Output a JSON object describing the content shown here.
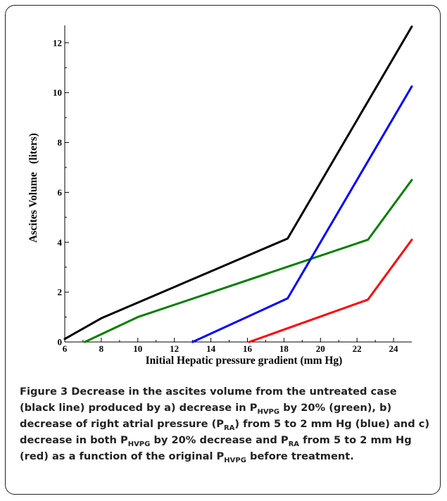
{
  "chart_data": {
    "type": "line",
    "xlabel": "Initial Hepatic pressure gradient (mm Hg)",
    "ylabel": "Ascites Volume   (liters)",
    "xlim": [
      6,
      25
    ],
    "ylim": [
      0,
      12.7
    ],
    "xticks": [
      6,
      8,
      10,
      12,
      14,
      16,
      18,
      20,
      22,
      24
    ],
    "yticks": [
      0,
      2,
      4,
      6,
      8,
      10,
      12
    ],
    "grid": false,
    "series": [
      {
        "color": "#000000",
        "points": [
          [
            6.0,
            0.12
          ],
          [
            8.0,
            0.95
          ],
          [
            18.2,
            4.15
          ],
          [
            25.0,
            12.65
          ]
        ]
      },
      {
        "color": "#008000",
        "points": [
          [
            7.1,
            0.0
          ],
          [
            10.0,
            1.0
          ],
          [
            22.6,
            4.1
          ],
          [
            25.0,
            6.5
          ]
        ]
      },
      {
        "color": "#0000ff",
        "points": [
          [
            13.0,
            0.0
          ],
          [
            18.2,
            1.75
          ],
          [
            25.0,
            10.25
          ]
        ]
      },
      {
        "color": "#ff0000",
        "points": [
          [
            16.1,
            0.0
          ],
          [
            22.6,
            1.7
          ],
          [
            25.0,
            4.1
          ]
        ]
      }
    ]
  },
  "caption": {
    "label": "Figure 3",
    "parts": [
      " Decrease in the ascites volume from the untreated case (black line) produced by a) decrease in P",
      "HVPG",
      " by 20% (green), b) decrease of right atrial pressure (P",
      "RA",
      ") from 5 to 2 mm Hg (blue) and c) decrease in both P",
      "HVPG",
      " by 20% decrease and P",
      "RA",
      " from 5 to 2 mm Hg (red) as a function of the original P",
      "HVPG",
      " before treatment."
    ]
  }
}
